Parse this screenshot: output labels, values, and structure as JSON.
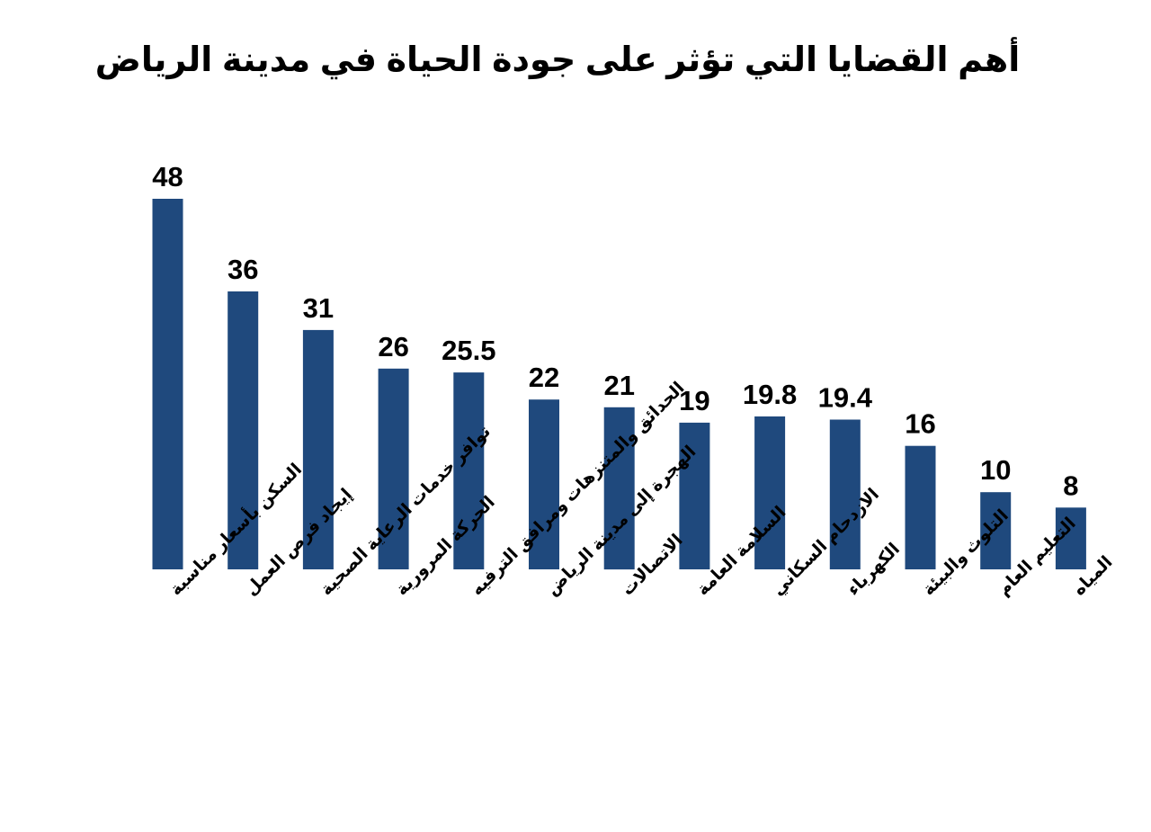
{
  "chart_data": {
    "type": "bar",
    "title": "أهم القضايا التي تؤثر على جودة الحياة في مدينة الرياض",
    "categories": [
      "السكن بأسعار مناسبة",
      "إيجاد فرص العمل",
      "توافر خدمات الرعاية الصحية",
      "الحركة المرورية",
      "الحدائق والمتنزهات ومرافق الترفيه",
      "الهجرة إلى مدينة الرياض",
      "الاتصالات",
      "السلامة العامة",
      "الازدحام السكاني",
      "الكهرباء",
      "التلوث والبيئة",
      "التعليم العام",
      "المياه"
    ],
    "values": [
      48,
      36,
      31,
      26,
      25.5,
      22,
      21,
      19,
      19.8,
      19.4,
      16,
      10,
      8
    ],
    "value_labels": [
      "48",
      "36",
      "31",
      "26",
      "25.5",
      "22",
      "21",
      "19",
      "19.8",
      "19.4",
      "16",
      "10",
      "8"
    ],
    "bar_color": "#1f497d",
    "xlabel": "",
    "ylabel": "",
    "ylim": [
      0,
      48
    ],
    "grid": false,
    "legend": "none"
  }
}
